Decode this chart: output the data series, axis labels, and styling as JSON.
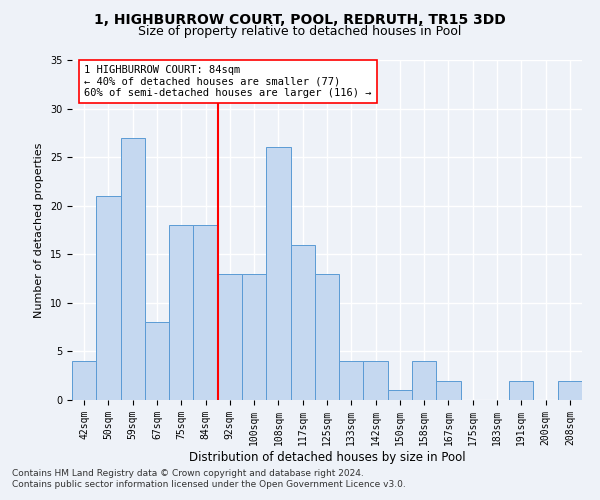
{
  "title1": "1, HIGHBURROW COURT, POOL, REDRUTH, TR15 3DD",
  "title2": "Size of property relative to detached houses in Pool",
  "xlabel": "Distribution of detached houses by size in Pool",
  "ylabel": "Number of detached properties",
  "categories": [
    "42sqm",
    "50sqm",
    "59sqm",
    "67sqm",
    "75sqm",
    "84sqm",
    "92sqm",
    "100sqm",
    "108sqm",
    "117sqm",
    "125sqm",
    "133sqm",
    "142sqm",
    "150sqm",
    "158sqm",
    "167sqm",
    "175sqm",
    "183sqm",
    "191sqm",
    "200sqm",
    "208sqm"
  ],
  "values": [
    4,
    21,
    27,
    8,
    18,
    18,
    13,
    13,
    26,
    16,
    13,
    4,
    4,
    1,
    4,
    2,
    0,
    0,
    2,
    0,
    2
  ],
  "bar_color": "#c5d8f0",
  "bar_edge_color": "#5b9bd5",
  "red_line_index": 5,
  "annotation_text": "1 HIGHBURROW COURT: 84sqm\n← 40% of detached houses are smaller (77)\n60% of semi-detached houses are larger (116) →",
  "ylim": [
    0,
    35
  ],
  "yticks": [
    0,
    5,
    10,
    15,
    20,
    25,
    30,
    35
  ],
  "footnote1": "Contains HM Land Registry data © Crown copyright and database right 2024.",
  "footnote2": "Contains public sector information licensed under the Open Government Licence v3.0.",
  "bg_color": "#eef2f8",
  "grid_color": "#ffffff",
  "title1_fontsize": 10,
  "title2_fontsize": 9,
  "xlabel_fontsize": 8.5,
  "ylabel_fontsize": 8,
  "tick_fontsize": 7,
  "annotation_fontsize": 7.5,
  "footnote_fontsize": 6.5
}
